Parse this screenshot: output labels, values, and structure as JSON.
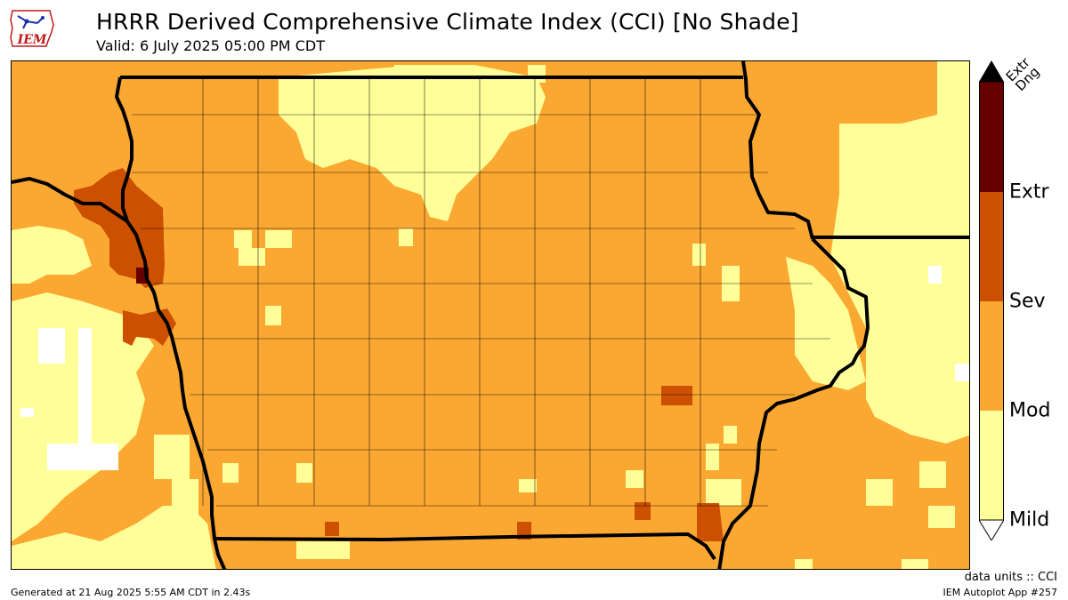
{
  "header": {
    "logo_text": "IEM",
    "title": "HRRR Derived Comprehensive Climate Index (CCI) [No Shade]",
    "valid": "Valid: 6 July 2025 05:00 PM CDT"
  },
  "legend": {
    "levels": [
      "Mild",
      "Mod",
      "Sev",
      "Extr"
    ],
    "top_label": "Extr\nDng",
    "colors": {
      "mild": "#ffff99",
      "mod": "#fba832",
      "sev": "#cc5000",
      "extr": "#660000",
      "none": "#ffffff"
    }
  },
  "footer": {
    "units": "data units :: CCI",
    "generated": "Generated at 21 Aug 2025 5:55 AM CDT in 2.43s",
    "app": "IEM Autoplot App #257"
  }
}
